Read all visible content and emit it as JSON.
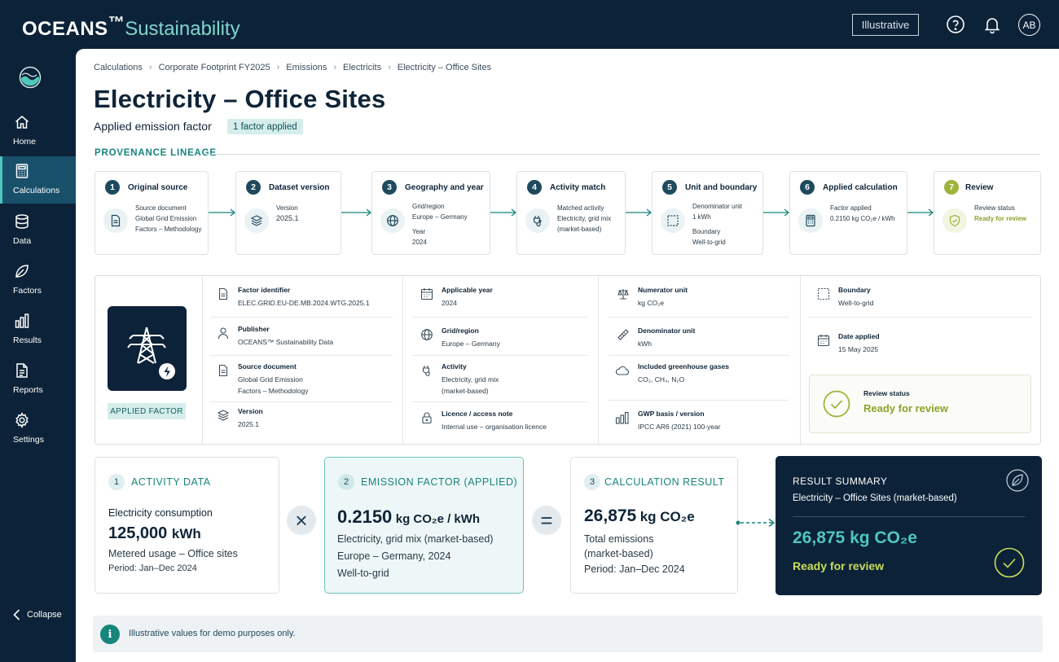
{
  "header": {
    "brand_main": "OCEANS",
    "brand_tm": "™",
    "brand_sub": "Sustainability",
    "illustrative_label": "Illustrative",
    "help_icon": "help-circle-icon",
    "bell_icon": "bell-icon",
    "avatar_initials": "AB"
  },
  "sidebar": {
    "items": [
      {
        "label": "Home",
        "icon": "home-icon"
      },
      {
        "label": "Calculations",
        "icon": "calculator-icon",
        "active": true
      },
      {
        "label": "Data",
        "icon": "database-icon"
      },
      {
        "label": "Factors",
        "icon": "leaf-icon"
      },
      {
        "label": "Results",
        "icon": "bar-chart-icon"
      },
      {
        "label": "Reports",
        "icon": "document-icon"
      },
      {
        "label": "Settings",
        "icon": "gear-icon"
      }
    ],
    "collapse_label": "Collapse"
  },
  "breadcrumb": [
    "Calculations",
    "Corporate Footprint FY2025",
    "Emissions",
    "Electricits",
    "Electricity – Office Sites"
  ],
  "page": {
    "title": "Electricity – Office Sites",
    "subtitle": "Applied emission factor",
    "badge": "1 factor applied",
    "provenance_heading": "PROVENANCE LINEAGE"
  },
  "lineage": [
    {
      "num": "1",
      "title": "Original source",
      "lines": [
        "Source document",
        "Global Grid Emission",
        "Factors – Methodology"
      ]
    },
    {
      "num": "2",
      "title": "Dataset version",
      "lines": [
        "Version",
        "2025.1"
      ]
    },
    {
      "num": "3",
      "title": "Geography and year",
      "lines": [
        "Grid/region",
        "Europe – Germany",
        "",
        "Year",
        "2024"
      ]
    },
    {
      "num": "4",
      "title": "Activity match",
      "lines": [
        "Matched activity",
        "Electricity, grid mix",
        "(market-based)"
      ]
    },
    {
      "num": "5",
      "title": "Unit and boundary",
      "lines": [
        "Denominator unit",
        "1 kWh",
        "",
        "Boundary",
        "Well-to-grid"
      ]
    },
    {
      "num": "6",
      "title": "Applied calculation",
      "lines": [
        "Factor applied",
        "0.2150 kg CO₂e / kWh"
      ]
    },
    {
      "num": "7",
      "title": "Review",
      "lines": [
        "Review status",
        "Ready for review"
      ]
    }
  ],
  "detail": {
    "applied_tag": "APPLIED FACTOR",
    "factor_identifier_label": "Factor identifier",
    "factor_identifier_value": "ELEC.GRID.EU-DE.MB.2024.WTG.2025.1",
    "publisher_label": "Publisher",
    "publisher_value": "OCEANS™ Sustainability Data",
    "source_label": "Source document",
    "source_value_1": "Global Grid Emission",
    "source_value_2": "Factors – Methodology",
    "version_label": "Version",
    "version_value": "2025.1",
    "year_label": "Applicable year",
    "year_value": "2024",
    "region_label": "Grid/region",
    "region_value": "Europe – Germany",
    "activity_label": "Activity",
    "activity_value_1": "Electricity, grid mix",
    "activity_value_2": "(market-based)",
    "licence_label": "Licence / access note",
    "licence_value": "Internal use – organisation licence",
    "numerator_label": "Numerator unit",
    "numerator_value": "kg CO₂e",
    "denominator_label": "Denominator unit",
    "denominator_value": "kWh",
    "ghg_label": "Included greenhouse gases",
    "ghg_value": "CO₂, CH₄, N₂O",
    "gwp_label": "GWP basis / version",
    "gwp_value": "IPCC AR6 (2021) 100-year",
    "boundary_label": "Boundary",
    "boundary_value": "Well-to-grid",
    "date_label": "Date applied",
    "date_value": "15 May 2025",
    "review_label": "Review status",
    "review_value": "Ready for review"
  },
  "calc": {
    "activity": {
      "num": "1",
      "heading": "ACTIVITY DATA",
      "label": "Electricity consumption",
      "value": "125,000",
      "unit": "kWh",
      "note1": "Metered usage – Office sites",
      "note2": "Period: Jan–Dec 2024"
    },
    "factor": {
      "num": "2",
      "heading": "EMISSION FACTOR (APPLIED)",
      "value": "0.2150",
      "unit": "kg CO₂e / kWh",
      "line1": "Electricity, grid mix (market-based)",
      "line2": "Europe – Germany, 2024",
      "line3": "Well-to-grid"
    },
    "result": {
      "num": "3",
      "heading": "CALCULATION RESULT",
      "value": "26,875",
      "unit": "kg CO₂e",
      "line1": "Total emissions",
      "line2": "(market-based)",
      "line3": "Period: Jan–Dec 2024"
    },
    "times_symbol": "×",
    "equals_symbol": "="
  },
  "summary": {
    "heading": "RESULT SUMMARY",
    "subtitle": "Electricity – Office Sites (market-based)",
    "value": "26,875 kg CO₂e",
    "status": "Ready for review"
  },
  "note": "Illustrative values for demo purposes only.",
  "colors": {
    "navy": "#0c2238",
    "teal": "#17857b",
    "lime": "#9db43b",
    "mint": "#7fd6cd"
  }
}
